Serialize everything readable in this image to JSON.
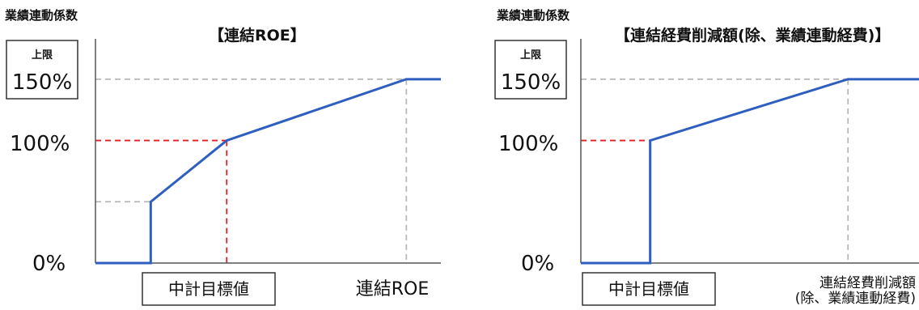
{
  "chart_data": [
    {
      "type": "line",
      "title": "【連結ROE】",
      "ylabel": "業績連動係数",
      "xlabel": "連結ROE",
      "target_label": "中計目標値",
      "upper_limit_caption": "上限",
      "ytick_labels": {
        "zero": "0%",
        "hundred": "100%",
        "cap": "150%"
      },
      "y_values": {
        "zero": 0,
        "hundred": 100,
        "cap": 150
      },
      "ylim": [
        0,
        175
      ],
      "x_axis_numeric": false,
      "series": [
        {
          "x": [
            0.0,
            0.16,
            0.16,
            0.38,
            0.9,
            1.0
          ],
          "y": [
            0,
            0,
            50,
            100,
            150,
            150
          ]
        }
      ],
      "reference_lines": [
        {
          "y": 100,
          "x_end": 0.38,
          "color": "#e02020",
          "vertical": true
        },
        {
          "y": 50,
          "x_end": 0.16,
          "color": "#b8b8b8",
          "vertical": false
        },
        {
          "y": 150,
          "x_end": 0.9,
          "color": "#b8b8b8",
          "vertical": true
        }
      ],
      "line_color": "#2e5fbf",
      "grid": false,
      "legend": "none"
    },
    {
      "type": "line",
      "title": "【連結経費削減額(除、業績連動経費)】",
      "ylabel": "業績連動係数",
      "xlabel_lines": [
        "連結経費削減額",
        "(除、業績連動経費)"
      ],
      "target_label": "中計目標値",
      "upper_limit_caption": "上限",
      "ytick_labels": {
        "zero": "0%",
        "hundred": "100%",
        "cap": "150%"
      },
      "y_values": {
        "zero": 0,
        "hundred": 100,
        "cap": 150
      },
      "ylim": [
        0,
        175
      ],
      "x_axis_numeric": false,
      "series": [
        {
          "x": [
            0.0,
            0.205,
            0.205,
            0.79,
            1.0
          ],
          "y": [
            0,
            0,
            100,
            150,
            150
          ]
        }
      ],
      "reference_lines": [
        {
          "y": 100,
          "x_end": 0.205,
          "color": "#e02020",
          "vertical": false
        },
        {
          "y": 150,
          "x_end": 0.79,
          "color": "#b8b8b8",
          "vertical": true
        }
      ],
      "line_color": "#2e5fbf",
      "grid": false,
      "legend": "none"
    }
  ]
}
